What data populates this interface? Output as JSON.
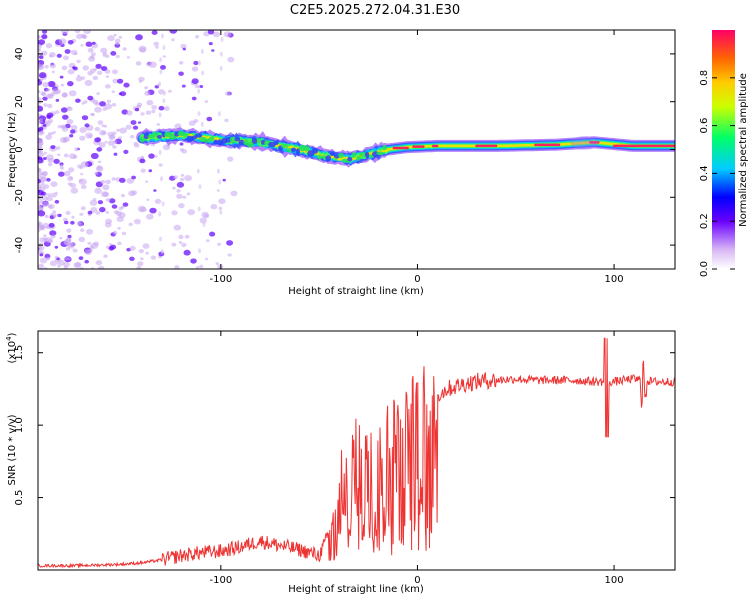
{
  "title": "C2E5.2025.272.04.31.E30",
  "chart_data": [
    {
      "type": "heatmap",
      "name": "spectrogram",
      "xlabel": "Height of straight line (km)",
      "ylabel": "Frequency (Hz)",
      "xlim": [
        -193,
        131
      ],
      "ylim": [
        -50,
        50
      ],
      "xticks": [
        -100,
        0,
        100
      ],
      "yticks": [
        -40,
        -20,
        0,
        20,
        40
      ],
      "ytick_labels": [
        "-40",
        "-20",
        "0",
        "20",
        "40"
      ],
      "ridge": {
        "x": [
          -140,
          -120,
          -100,
          -80,
          -60,
          -45,
          -35,
          -25,
          -15,
          -5,
          10,
          40,
          70,
          90,
          110,
          131
        ],
        "freq": [
          5,
          6,
          4,
          3,
          0,
          -3,
          -4,
          -2,
          0,
          1,
          1.5,
          1.5,
          2,
          3,
          1.5,
          1.5
        ]
      },
      "colorbar": {
        "label": "Normalized spectral amplitude",
        "range": [
          0,
          1
        ],
        "ticks": [
          0.0,
          0.2,
          0.4,
          0.6,
          0.8
        ],
        "tick_labels": [
          "0.0",
          "0.2",
          "0.4",
          "0.6",
          "0.8"
        ]
      }
    },
    {
      "type": "line",
      "name": "snr",
      "xlabel": "Height of straight line (km)",
      "ylabel": "SNR (10 * v/v)",
      "multiplier_base": "(x10",
      "multiplier_exp": "4",
      "multiplier_close": ")",
      "xlim": [
        -193,
        131
      ],
      "ylim": [
        0,
        1.65
      ],
      "xticks": [
        -100,
        0,
        100
      ],
      "yticks": [
        0.5,
        1.0,
        1.5
      ],
      "ytick_labels": [
        "0.5",
        "1.0",
        "1.5"
      ],
      "color": "#ee3333",
      "series": [
        {
          "name": "SNR",
          "x": [
            -193,
            -175,
            -160,
            -150,
            -140,
            -130,
            -120,
            -110,
            -100,
            -90,
            -80,
            -70,
            -60,
            -50,
            -45,
            -40,
            -35,
            -30,
            -25,
            -20,
            -15,
            -10,
            -5,
            0,
            5,
            10,
            15,
            20,
            25,
            30,
            35,
            40,
            50,
            60,
            70,
            80,
            90,
            95,
            100,
            105,
            110,
            115,
            120,
            131
          ],
          "values": [
            0.03,
            0.03,
            0.035,
            0.04,
            0.05,
            0.07,
            0.1,
            0.12,
            0.13,
            0.16,
            0.2,
            0.17,
            0.14,
            0.1,
            0.25,
            0.5,
            0.7,
            0.8,
            0.85,
            0.9,
            0.95,
            1.0,
            1.05,
            1.1,
            1.15,
            1.2,
            1.25,
            1.27,
            1.29,
            1.3,
            1.31,
            1.31,
            1.32,
            1.31,
            1.31,
            1.31,
            1.3,
            1.3,
            1.3,
            1.31,
            1.32,
            1.31,
            1.3,
            1.3
          ]
        }
      ]
    }
  ]
}
